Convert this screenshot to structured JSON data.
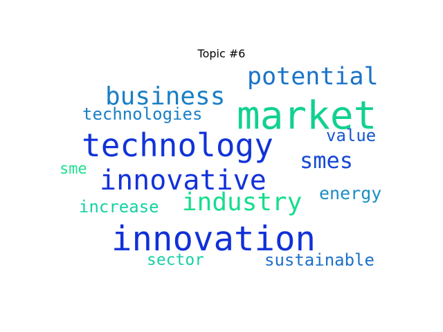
{
  "title": "Topic #6",
  "words": [
    {
      "text": "market",
      "color": "#12d190"
    },
    {
      "text": "potential",
      "color": "#1b73c9"
    },
    {
      "text": "business",
      "color": "#1a7fc4"
    },
    {
      "text": "technologies",
      "color": "#1a7fc4"
    },
    {
      "text": "technology",
      "color": "#1233d8"
    },
    {
      "text": "value",
      "color": "#1756cc"
    },
    {
      "text": "smes",
      "color": "#1548d4"
    },
    {
      "text": "sme",
      "color": "#1fe08f"
    },
    {
      "text": "innovative",
      "color": "#1232d9"
    },
    {
      "text": "industry",
      "color": "#15dd8d"
    },
    {
      "text": "energy",
      "color": "#1a8ec4"
    },
    {
      "text": "increase",
      "color": "#14d1a3"
    },
    {
      "text": "innovation",
      "color": "#1030d8"
    },
    {
      "text": "sector",
      "color": "#18cfa6"
    },
    {
      "text": "sustainable",
      "color": "#1c6fc8"
    }
  ]
}
